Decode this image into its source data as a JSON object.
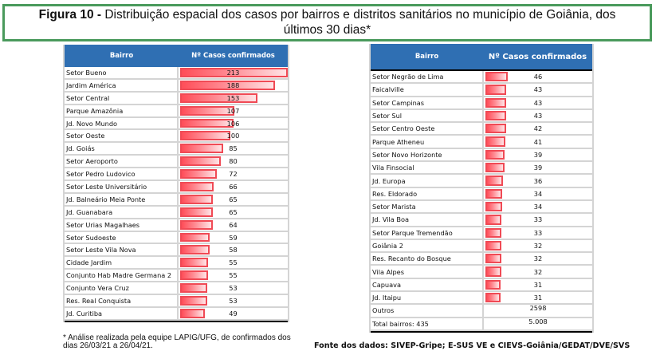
{
  "figure": {
    "label": "Figura 10 -",
    "title_line1": " Distribuição espacial dos casos por bairros e distritos sanitários no município de Goiânia, dos",
    "title_line2": "últimos 30 dias*"
  },
  "colors": {
    "header_bg": "#2f6fb3",
    "bar_red": "#ff4d58",
    "bar_border": "#f04a55",
    "frame_green": "#4a9a5c"
  },
  "left_table": {
    "headers": [
      "Bairro",
      "Nº Casos confirmados"
    ],
    "max_value": 213,
    "rows": [
      {
        "bairro": "Setor Bueno",
        "casos": 213
      },
      {
        "bairro": "Jardim América",
        "casos": 188
      },
      {
        "bairro": "Setor Central",
        "casos": 153
      },
      {
        "bairro": "Parque Amazônia",
        "casos": 107
      },
      {
        "bairro": "Jd. Novo Mundo",
        "casos": 106
      },
      {
        "bairro": "Setor Oeste",
        "casos": 100
      },
      {
        "bairro": "Jd. Goiás",
        "casos": 85
      },
      {
        "bairro": "Setor Aeroporto",
        "casos": 80
      },
      {
        "bairro": "Setor Pedro Ludovico",
        "casos": 72
      },
      {
        "bairro": "Setor Leste Universitário",
        "casos": 66
      },
      {
        "bairro": "Jd. Balneário Meia Ponte",
        "casos": 65
      },
      {
        "bairro": "Jd. Guanabara",
        "casos": 65
      },
      {
        "bairro": "Setor Urias Magalhaes",
        "casos": 64
      },
      {
        "bairro": "Setor Sudoeste",
        "casos": 59
      },
      {
        "bairro": "Setor Leste Vila Nova",
        "casos": 58
      },
      {
        "bairro": "Cidade Jardim",
        "casos": 55
      },
      {
        "bairro": "Conjunto Hab Madre Germana 2",
        "casos": 55
      },
      {
        "bairro": "Conjunto Vera Cruz",
        "casos": 53
      },
      {
        "bairro": "Res. Real Conquista",
        "casos": 53
      },
      {
        "bairro": "Jd. Curitiba",
        "casos": 49
      }
    ]
  },
  "right_table": {
    "headers": [
      "Bairro",
      "Nº Casos confirmados"
    ],
    "max_value": 213,
    "rows": [
      {
        "bairro": "Setor Negrão de Lima",
        "casos": 46
      },
      {
        "bairro": "Faicalville",
        "casos": 43
      },
      {
        "bairro": "Setor Campinas",
        "casos": 43
      },
      {
        "bairro": "Setor Sul",
        "casos": 43
      },
      {
        "bairro": "Setor Centro Oeste",
        "casos": 42
      },
      {
        "bairro": "Parque Atheneu",
        "casos": 41
      },
      {
        "bairro": "Setor Novo Horizonte",
        "casos": 39
      },
      {
        "bairro": "Vila Finsocial",
        "casos": 39
      },
      {
        "bairro": "Jd. Europa",
        "casos": 36
      },
      {
        "bairro": "Res. Eldorado",
        "casos": 34
      },
      {
        "bairro": "Setor Marista",
        "casos": 34
      },
      {
        "bairro": "Jd. Vila Boa",
        "casos": 33
      },
      {
        "bairro": "Setor Parque Tremendão",
        "casos": 33
      },
      {
        "bairro": "Goiânia 2",
        "casos": 32
      },
      {
        "bairro": "Res. Recanto do Bosque",
        "casos": 32
      },
      {
        "bairro": "Vila Alpes",
        "casos": 32
      },
      {
        "bairro": "Capuava",
        "casos": 31
      },
      {
        "bairro": "Jd. Itaipu",
        "casos": 31
      }
    ],
    "summary_rows": [
      {
        "bairro": "Outros",
        "casos": "2598"
      },
      {
        "bairro": "Total bairros: 435",
        "casos": "5.008"
      }
    ]
  },
  "footnote": "* Análise realizada pela equipe LAPIG/UFG, de confirmados dos dias 26/03/21 a 26/04/21.",
  "source": "Fonte dos dados: SIVEP-Gripe; E-SUS VE e CIEVS-Goiânia/GEDAT/DVE/SVS"
}
